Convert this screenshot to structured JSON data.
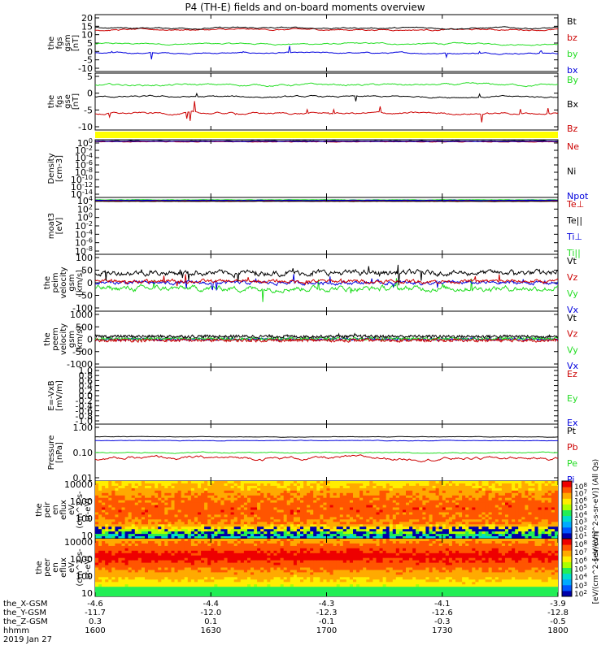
{
  "title": "P4 (TH-E) fields and on-board moments overview",
  "colors": {
    "black": "#000000",
    "red": "#cc0000",
    "green": "#22dd22",
    "blue": "#0000dd",
    "yellow": "#ffff00"
  },
  "panels": [
    {
      "id": "fgs-gsm",
      "ylabel": [
        "the",
        "fgs",
        "gsm",
        "[nT]"
      ],
      "ticks": [
        "20",
        "15",
        "10",
        "5",
        "0",
        "-5",
        "-10"
      ],
      "legend": [
        {
          "t": "Bt",
          "c": "black"
        },
        {
          "t": "bz",
          "c": "red"
        },
        {
          "t": "by",
          "c": "green"
        },
        {
          "t": "bx",
          "c": "blue"
        }
      ]
    },
    {
      "id": "fgs-gse",
      "ylabel": [
        "the",
        "fgs",
        "gse",
        "[nT]"
      ],
      "ticks": [
        "5",
        "0",
        "-5",
        "-10"
      ],
      "legend": [
        {
          "t": "By",
          "c": "green"
        },
        {
          "t": "Bx",
          "c": "black"
        },
        {
          "t": "Bz",
          "c": "red"
        }
      ]
    },
    {
      "id": "density",
      "ylabel": [
        "Density",
        "[cm-3]"
      ],
      "ticks": [
        "10^0",
        "10^-2",
        "10^-4",
        "10^-6",
        "10^-8",
        "10^-10",
        "10^-12",
        "10^-14"
      ],
      "legend": [
        {
          "t": "Ne",
          "c": "red"
        },
        {
          "t": "Ni",
          "c": "black"
        },
        {
          "t": "Npot",
          "c": "blue"
        }
      ]
    },
    {
      "id": "temperature",
      "ylabel": [
        "moat3",
        "[eV]"
      ],
      "ticks": [
        "10^4",
        "10^2",
        "10^0",
        "10^-2",
        "10^-4",
        "10^-6",
        "10^-8"
      ],
      "legend": [
        {
          "t": "Te⊥",
          "c": "red"
        },
        {
          "t": "Te||",
          "c": "black"
        },
        {
          "t": "Ti⊥",
          "c": "blue"
        },
        {
          "t": "Ti||",
          "c": "green"
        }
      ]
    },
    {
      "id": "ion-velocity",
      "ylabel": [
        "the",
        "peim",
        "velocity",
        "gsm",
        "[km/s]"
      ],
      "ticks": [
        "100",
        "50",
        "0",
        "-50",
        "-100"
      ],
      "legend": [
        {
          "t": "Vt",
          "c": "black"
        },
        {
          "t": "Vz",
          "c": "red"
        },
        {
          "t": "Vy",
          "c": "green"
        },
        {
          "t": "Vx",
          "c": "blue"
        }
      ]
    },
    {
      "id": "electron-velocity",
      "ylabel": [
        "the",
        "peem",
        "velocity",
        "gsm",
        "[km/s]"
      ],
      "ticks": [
        "1000",
        "500",
        "0",
        "-500",
        "-1000"
      ],
      "legend": [
        {
          "t": "Vt",
          "c": "black"
        },
        {
          "t": "Vz",
          "c": "red"
        },
        {
          "t": "Vy",
          "c": "green"
        },
        {
          "t": "Vx",
          "c": "blue"
        }
      ]
    },
    {
      "id": "efield",
      "ylabel": [
        "E=-VxB",
        "[mV/m]"
      ],
      "ticks": [
        "1.0",
        "0.8",
        "0.6",
        "0.4",
        "0.2",
        "0.0",
        "-0.2",
        "-0.4",
        "-0.6",
        "-0.8",
        "-1.0"
      ],
      "legend": [
        {
          "t": "Ez",
          "c": "red"
        },
        {
          "t": "Ey",
          "c": "green"
        },
        {
          "t": "Ex",
          "c": "blue"
        }
      ]
    },
    {
      "id": "pressure",
      "ylabel": [
        "Pressure",
        "[nPa]"
      ],
      "ticks": [
        "1.00",
        "0.10",
        "0.01"
      ],
      "legend": [
        {
          "t": "Pt",
          "c": "black"
        },
        {
          "t": "Pb",
          "c": "red"
        },
        {
          "t": "Pe",
          "c": "green"
        },
        {
          "t": "Pi",
          "c": "blue"
        }
      ]
    },
    {
      "id": "ion-spectrogram",
      "ylabel": [
        "the",
        "peir",
        "en",
        "eflux",
        "eV",
        "(cm^2-s-",
        "sr-eV)"
      ],
      "ticks": [
        "10000",
        "1000",
        "100",
        "10"
      ],
      "colorbar": {
        "label": "[eV/(cm^2-s-sr-eV)] (All Qs)",
        "ticks": [
          "10^8",
          "10^7",
          "10^6",
          "10^5",
          "10^4",
          "10^3",
          "10^2",
          "10^1"
        ]
      }
    },
    {
      "id": "electron-spectrogram",
      "ylabel": [
        "the",
        "peer",
        "en",
        "eflux",
        "eV",
        "(cm^2-s-",
        "sr-eV)"
      ],
      "ticks": [
        "10000",
        "1000",
        "100",
        "10"
      ],
      "colorbar": {
        "label": "[eV/(cm^2-s-sr-eV)]",
        "ticks": [
          "10^8",
          "10^7",
          "10^6",
          "10^5",
          "10^4",
          "10^3",
          "10^2"
        ]
      }
    }
  ],
  "xaxis": {
    "rows": [
      {
        "label": "the_X-GSM",
        "vals": [
          "-4.6",
          "-4.4",
          "-4.3",
          "-4.1",
          "-3.9"
        ]
      },
      {
        "label": "the_Y-GSM",
        "vals": [
          "-11.7",
          "-12.0",
          "-12.3",
          "-12.6",
          "-12.8"
        ]
      },
      {
        "label": "the_Z-GSM",
        "vals": [
          "0.3",
          "0.1",
          "-0.1",
          "-0.3",
          "-0.5"
        ]
      },
      {
        "label": "hhmm",
        "vals": [
          "1600",
          "1630",
          "1700",
          "1730",
          "1800"
        ]
      }
    ],
    "date": "2019 Jan 27"
  },
  "chart_data": [
    {
      "type": "line",
      "name": "fgs gsm",
      "ylim": [
        -12,
        22
      ],
      "series": [
        {
          "name": "Bt",
          "approx": "12-17 nT"
        },
        {
          "name": "bz",
          "approx": "11-16 nT"
        },
        {
          "name": "by",
          "approx": "1-8 nT"
        },
        {
          "name": "bx",
          "approx": "-4 to 1 nT"
        }
      ]
    },
    {
      "type": "line",
      "name": "fgs gse",
      "ylim": [
        -14,
        10
      ],
      "series": [
        {
          "name": "By",
          "approx": "3-8 nT"
        },
        {
          "name": "Bx",
          "approx": "-2 to 2 nT"
        },
        {
          "name": "Bz",
          "approx": "-10 to -4 nT"
        }
      ]
    },
    {
      "type": "line",
      "name": "ion velocity gsm",
      "ylim": [
        -100,
        100
      ],
      "series": [
        {
          "name": "Vt",
          "approx": "10-90 km/s"
        },
        {
          "name": "Vz",
          "approx": "-20 to 40 km/s"
        },
        {
          "name": "Vy",
          "approx": "-70 to 20 km/s"
        },
        {
          "name": "Vx",
          "approx": "-30 to 30 km/s"
        }
      ]
    },
    {
      "type": "line",
      "name": "pressure",
      "scale": "log",
      "ylim": [
        0.01,
        1.0
      ],
      "series": [
        {
          "name": "Pt",
          "approx": "0.4"
        },
        {
          "name": "Pb",
          "approx": "0.05-0.1"
        },
        {
          "name": "Pe",
          "approx": "0.08-0.13"
        },
        {
          "name": "Pi",
          "approx": "0.25-0.33"
        }
      ]
    }
  ]
}
